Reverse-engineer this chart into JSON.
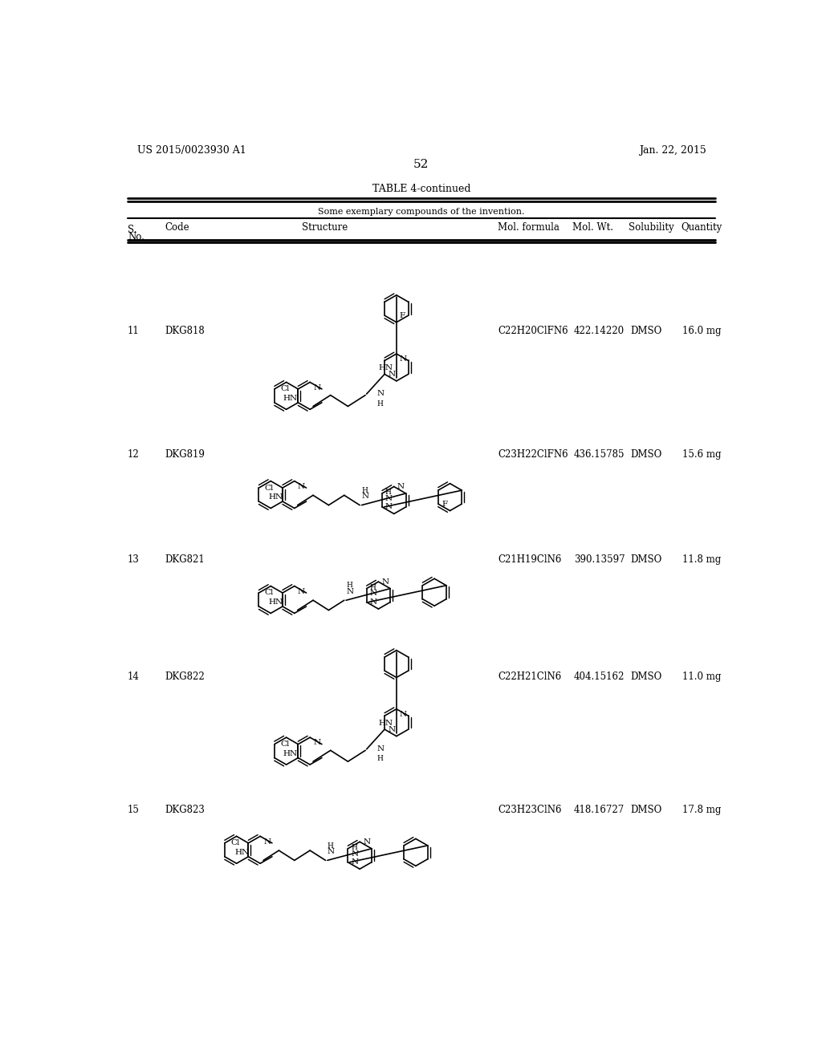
{
  "page_number": "52",
  "patent_number": "US 2015/0023930 A1",
  "patent_date": "Jan. 22, 2015",
  "table_title": "TABLE 4-continued",
  "table_subtitle": "Some exemplary compounds of the invention.",
  "rows": [
    {
      "no": "11",
      "code": "DKG818",
      "mol_formula": "C22H20ClFN6",
      "mol_wt": "422.14220",
      "solubility": "DMSO",
      "quantity": "16.0 mg"
    },
    {
      "no": "12",
      "code": "DKG819",
      "mol_formula": "C23H22ClFN6",
      "mol_wt": "436.15785",
      "solubility": "DMSO",
      "quantity": "15.6 mg"
    },
    {
      "no": "13",
      "code": "DKG821",
      "mol_formula": "C21H19ClN6",
      "mol_wt": "390.13597",
      "solubility": "DMSO",
      "quantity": "11.8 mg"
    },
    {
      "no": "14",
      "code": "DKG822",
      "mol_formula": "C22H21ClN6",
      "mol_wt": "404.15162",
      "solubility": "DMSO",
      "quantity": "11.0 mg"
    },
    {
      "no": "15",
      "code": "DKG823",
      "mol_formula": "C23H23ClN6",
      "mol_wt": "418.16727",
      "solubility": "DMSO",
      "quantity": "17.8 mg"
    }
  ],
  "bg_color": "#ffffff",
  "text_color": "#000000"
}
